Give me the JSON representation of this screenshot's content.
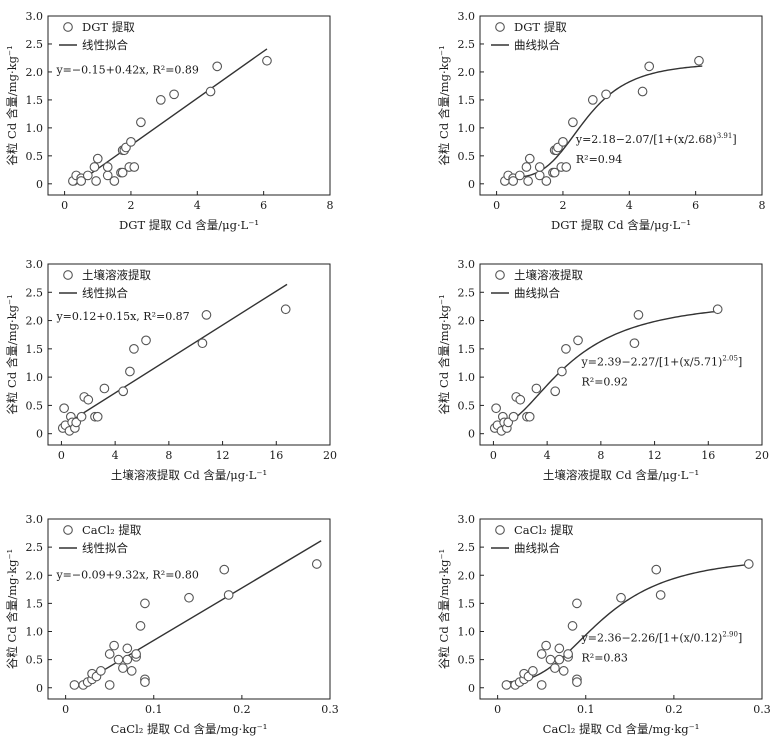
{
  "chart_data": [
    {
      "type": "scatter",
      "fit": "linear",
      "xlabel": "DGT 提取 Cd 含量/μg·L⁻¹",
      "ylabel": "谷粒 Cd 含量/mg·kg⁻¹",
      "xlim": [
        -0.5,
        8
      ],
      "xticks": [
        0,
        2,
        4,
        6,
        8
      ],
      "xtick_labels": [
        "0",
        "2",
        "4",
        "6",
        "8"
      ],
      "ylim": [
        -0.2,
        3.0
      ],
      "yticks": [
        0,
        0.5,
        1.0,
        1.5,
        2.0,
        2.5,
        3.0
      ],
      "ytick_labels": [
        "0",
        "0.5",
        "1.0",
        "1.5",
        "2.0",
        "2.5",
        "3.0"
      ],
      "legend": {
        "scatter": "DGT 提取",
        "line": "线性拟合"
      },
      "equation": {
        "main": "y=−0.15+0.42x, R²=0.89"
      },
      "fit_line": {
        "intercept": -0.15,
        "slope": 0.42,
        "x_range": [
          0.3,
          6.1
        ]
      },
      "x": [
        0.25,
        0.35,
        0.5,
        0.5,
        0.7,
        0.9,
        0.95,
        1.0,
        1.3,
        1.3,
        1.5,
        1.7,
        1.75,
        1.75,
        1.8,
        1.85,
        1.95,
        2.0,
        2.1,
        2.3,
        2.9,
        3.3,
        4.4,
        4.6,
        6.1
      ],
      "y": [
        0.05,
        0.15,
        0.1,
        0.05,
        0.15,
        0.3,
        0.05,
        0.45,
        0.15,
        0.3,
        0.05,
        0.2,
        0.6,
        0.2,
        0.6,
        0.65,
        0.3,
        0.75,
        0.3,
        1.1,
        1.5,
        1.6,
        1.65,
        2.1,
        2.2
      ]
    },
    {
      "type": "scatter",
      "fit": "curve",
      "xlabel": "DGT 提取 Cd 含量/μg·L⁻¹",
      "ylabel": "谷粒 Cd 含量/mg·kg⁻¹",
      "xlim": [
        -0.5,
        8
      ],
      "xticks": [
        0,
        2,
        4,
        6,
        8
      ],
      "xtick_labels": [
        "0",
        "2",
        "4",
        "6",
        "8"
      ],
      "ylim": [
        -0.2,
        3.0
      ],
      "yticks": [
        0,
        0.5,
        1.0,
        1.5,
        2.0,
        2.5,
        3.0
      ],
      "ytick_labels": [
        "0",
        "0.5",
        "1.0",
        "1.5",
        "2.0",
        "2.5",
        "3.0"
      ],
      "legend": {
        "scatter": "DGT 提取",
        "line": "曲线拟合"
      },
      "equation": {
        "main": "y=2.18−2.07/[1+(x/2.68)",
        "exp": "3.91",
        "close": "]",
        "r2": "R²=0.94"
      },
      "fit_curve": {
        "A": 2.18,
        "B": 2.07,
        "x0": 2.68,
        "p": 3.91,
        "x_range": [
          0.2,
          6.2
        ]
      },
      "x": [
        0.25,
        0.35,
        0.5,
        0.5,
        0.7,
        0.9,
        0.95,
        1.0,
        1.3,
        1.3,
        1.5,
        1.7,
        1.75,
        1.75,
        1.8,
        1.85,
        1.95,
        2.0,
        2.1,
        2.3,
        2.9,
        3.3,
        4.4,
        4.6,
        6.1
      ],
      "y": [
        0.05,
        0.15,
        0.1,
        0.05,
        0.15,
        0.3,
        0.05,
        0.45,
        0.15,
        0.3,
        0.05,
        0.2,
        0.6,
        0.2,
        0.6,
        0.65,
        0.3,
        0.75,
        0.3,
        1.1,
        1.5,
        1.6,
        1.65,
        2.1,
        2.2
      ]
    },
    {
      "type": "scatter",
      "fit": "linear",
      "xlabel": "土壤溶液提取 Cd 含量/μg·L⁻¹",
      "ylabel": "谷粒 Cd 含量/mg·kg⁻¹",
      "xlim": [
        -1,
        20
      ],
      "xticks": [
        0,
        4,
        8,
        12,
        16,
        20
      ],
      "xtick_labels": [
        "0",
        "4",
        "8",
        "12",
        "16",
        "20"
      ],
      "ylim": [
        -0.2,
        3.0
      ],
      "yticks": [
        0,
        0.5,
        1.0,
        1.5,
        2.0,
        2.5,
        3.0
      ],
      "ytick_labels": [
        "0",
        "0.5",
        "1.0",
        "1.5",
        "2.0",
        "2.5",
        "3.0"
      ],
      "legend": {
        "scatter": "土壤溶液提取",
        "line": "线性拟合"
      },
      "equation": {
        "main": "y=0.12+0.15x, R²=0.87"
      },
      "fit_line": {
        "intercept": 0.12,
        "slope": 0.15,
        "x_range": [
          0,
          16.8
        ]
      },
      "x": [
        0.1,
        0.2,
        0.3,
        0.6,
        0.7,
        0.8,
        1.0,
        1.1,
        1.5,
        1.7,
        2.0,
        2.5,
        2.7,
        3.2,
        4.6,
        5.1,
        5.4,
        6.3,
        10.5,
        10.8,
        16.7
      ],
      "y": [
        0.1,
        0.45,
        0.15,
        0.05,
        0.3,
        0.2,
        0.1,
        0.2,
        0.3,
        0.65,
        0.6,
        0.3,
        0.3,
        0.8,
        0.75,
        1.1,
        1.5,
        1.65,
        1.6,
        2.1,
        2.2
      ]
    },
    {
      "type": "scatter",
      "fit": "curve",
      "xlabel": "土壤溶液提取 Cd 含量/μg·L⁻¹",
      "ylabel": "谷粒 Cd 含量/mg·kg⁻¹",
      "xlim": [
        -1,
        20
      ],
      "xticks": [
        0,
        4,
        8,
        12,
        16,
        20
      ],
      "xtick_labels": [
        "0",
        "4",
        "8",
        "12",
        "16",
        "20"
      ],
      "ylim": [
        -0.2,
        3.0
      ],
      "yticks": [
        0,
        0.5,
        1.0,
        1.5,
        2.0,
        2.5,
        3.0
      ],
      "ytick_labels": [
        "0",
        "0.5",
        "1.0",
        "1.5",
        "2.0",
        "2.5",
        "3.0"
      ],
      "legend": {
        "scatter": "土壤溶液提取",
        "line": "曲线拟合"
      },
      "equation": {
        "main": "y=2.39−2.27/[1+(x/5.71)",
        "exp": "2.05",
        "close": "]",
        "r2": "R²=0.92"
      },
      "fit_curve": {
        "A": 2.39,
        "B": 2.27,
        "x0": 5.71,
        "p": 2.05,
        "x_range": [
          0,
          16.8
        ]
      },
      "x": [
        0.1,
        0.2,
        0.3,
        0.6,
        0.7,
        0.8,
        1.0,
        1.1,
        1.5,
        1.7,
        2.0,
        2.5,
        2.7,
        3.2,
        4.6,
        5.1,
        5.4,
        6.3,
        10.5,
        10.8,
        16.7
      ],
      "y": [
        0.1,
        0.45,
        0.15,
        0.05,
        0.3,
        0.2,
        0.1,
        0.2,
        0.3,
        0.65,
        0.6,
        0.3,
        0.3,
        0.8,
        0.75,
        1.1,
        1.5,
        1.65,
        1.6,
        2.1,
        2.2
      ]
    },
    {
      "type": "scatter",
      "fit": "linear",
      "xlabel": "CaCl₂ 提取 Cd 含量/mg·kg⁻¹",
      "ylabel": "谷粒 Cd 含量/mg·kg⁻¹",
      "xlim": [
        -0.02,
        0.3
      ],
      "xticks": [
        0,
        0.1,
        0.2,
        0.3
      ],
      "xtick_labels": [
        "0",
        "0.1",
        "0.2",
        "0.3"
      ],
      "ylim": [
        -0.2,
        3.0
      ],
      "yticks": [
        0,
        0.5,
        1.0,
        1.5,
        2.0,
        2.5,
        3.0
      ],
      "ytick_labels": [
        "0",
        "0.5",
        "1.0",
        "1.5",
        "2.0",
        "2.5",
        "3.0"
      ],
      "legend": {
        "scatter": "CaCl₂ 提取",
        "line": "线性拟合"
      },
      "equation": {
        "main": "y=−0.09+9.32x, R²=0.80"
      },
      "fit_line": {
        "intercept": -0.09,
        "slope": 9.32,
        "x_range": [
          0.01,
          0.29
        ]
      },
      "x": [
        0.01,
        0.02,
        0.025,
        0.03,
        0.03,
        0.035,
        0.04,
        0.05,
        0.05,
        0.055,
        0.06,
        0.065,
        0.07,
        0.07,
        0.075,
        0.08,
        0.08,
        0.085,
        0.09,
        0.09,
        0.09,
        0.14,
        0.18,
        0.185,
        0.285
      ],
      "y": [
        0.05,
        0.05,
        0.1,
        0.15,
        0.25,
        0.2,
        0.3,
        0.05,
        0.6,
        0.75,
        0.5,
        0.35,
        0.7,
        0.5,
        0.3,
        0.55,
        0.6,
        1.1,
        1.5,
        0.15,
        0.1,
        1.6,
        2.1,
        1.65,
        2.2
      ]
    },
    {
      "type": "scatter",
      "fit": "curve",
      "xlabel": "CaCl₂ 提取 Cd 含量/mg·kg⁻¹",
      "ylabel": "谷粒 Cd 含量/mg·kg⁻¹",
      "xlim": [
        -0.02,
        0.3
      ],
      "xticks": [
        0,
        0.1,
        0.2,
        0.3
      ],
      "xtick_labels": [
        "0",
        "0.1",
        "0.2",
        "0.3"
      ],
      "ylim": [
        -0.2,
        3.0
      ],
      "yticks": [
        0,
        0.5,
        1.0,
        1.5,
        2.0,
        2.5,
        3.0
      ],
      "ytick_labels": [
        "0",
        "0.5",
        "1.0",
        "1.5",
        "2.0",
        "2.5",
        "3.0"
      ],
      "legend": {
        "scatter": "CaCl₂ 提取",
        "line": "曲线拟合"
      },
      "equation": {
        "main": "y=2.36−2.26/[1+(x/0.12)",
        "exp": "2.90",
        "close": "]",
        "r2": "R²=0.83"
      },
      "fit_curve": {
        "A": 2.36,
        "B": 2.26,
        "x0": 0.12,
        "p": 2.9,
        "x_range": [
          0.01,
          0.29
        ]
      },
      "x": [
        0.01,
        0.02,
        0.025,
        0.03,
        0.03,
        0.035,
        0.04,
        0.05,
        0.05,
        0.055,
        0.06,
        0.065,
        0.07,
        0.07,
        0.075,
        0.08,
        0.08,
        0.085,
        0.09,
        0.09,
        0.09,
        0.14,
        0.18,
        0.185,
        0.285
      ],
      "y": [
        0.05,
        0.05,
        0.1,
        0.15,
        0.25,
        0.2,
        0.3,
        0.05,
        0.6,
        0.75,
        0.5,
        0.35,
        0.7,
        0.5,
        0.3,
        0.55,
        0.6,
        1.1,
        1.5,
        0.15,
        0.1,
        1.6,
        2.1,
        1.65,
        2.2
      ]
    }
  ]
}
